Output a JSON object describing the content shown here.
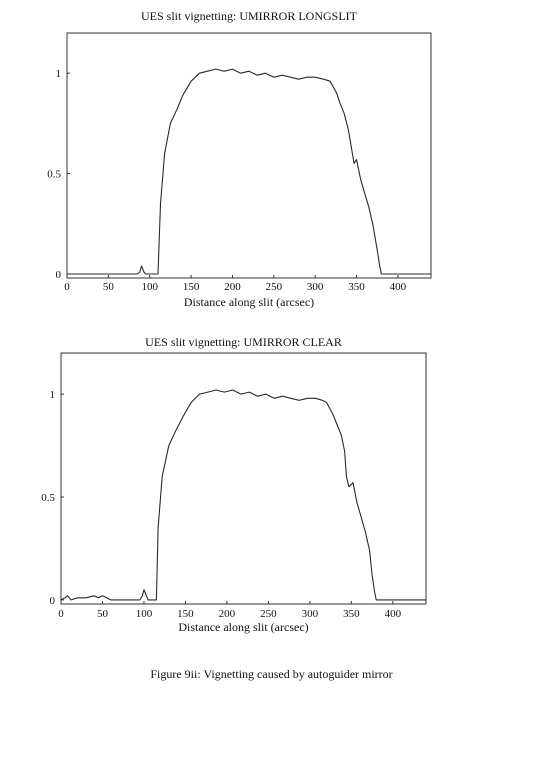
{
  "colors": {
    "line": "#2a2a2a",
    "frame": "#333333",
    "background": "#ffffff"
  },
  "caption": "Figure 9ii: Vignetting caused by autoguider mirror",
  "chart_data": [
    {
      "type": "line",
      "title": "UES slit vignetting: UMIRROR LONGSLIT",
      "xlabel": "Distance along slit (arcsec)",
      "ylabel": "",
      "xlim": [
        0,
        440
      ],
      "ylim": [
        -0.02,
        1.2
      ],
      "x_ticks": [
        "0",
        "50",
        "100",
        "150",
        "200",
        "250",
        "300",
        "350",
        "400"
      ],
      "y_ticks": [
        "0",
        "0.5",
        "1"
      ],
      "grid": false,
      "series": [
        {
          "x": [
            0,
            85,
            88,
            90,
            93,
            95,
            110,
            113,
            118,
            125,
            133,
            140,
            150,
            160,
            170,
            180,
            190,
            200,
            210,
            220,
            230,
            240,
            250,
            260,
            270,
            280,
            290,
            300,
            310,
            318,
            322,
            326,
            330,
            335,
            340,
            345,
            347,
            350,
            355,
            360,
            365,
            370,
            375,
            378,
            380,
            382,
            440
          ],
          "y": [
            0,
            0,
            0.01,
            0.04,
            0.01,
            0,
            0,
            0.35,
            0.6,
            0.75,
            0.82,
            0.89,
            0.96,
            1.0,
            1.01,
            1.02,
            1.01,
            1.02,
            1.0,
            1.01,
            0.99,
            1.0,
            0.98,
            0.99,
            0.98,
            0.97,
            0.98,
            0.98,
            0.97,
            0.96,
            0.93,
            0.9,
            0.85,
            0.8,
            0.72,
            0.6,
            0.55,
            0.57,
            0.47,
            0.4,
            0.33,
            0.24,
            0.12,
            0.04,
            0,
            0,
            0
          ]
        }
      ]
    },
    {
      "type": "line",
      "title": "UES slit vignetting: UMIRROR CLEAR",
      "xlabel": "Distance along slit (arcsec)",
      "ylabel": "",
      "xlim": [
        0,
        440
      ],
      "ylim": [
        -0.02,
        1.2
      ],
      "x_ticks": [
        "0",
        "50",
        "100",
        "150",
        "200",
        "250",
        "300",
        "350",
        "400"
      ],
      "y_ticks": [
        "0",
        "0.5",
        "1"
      ],
      "grid": false,
      "series": [
        {
          "x": [
            0,
            5,
            8,
            10,
            12,
            20,
            30,
            40,
            45,
            50,
            60,
            80,
            95,
            98,
            100,
            103,
            105,
            115,
            117,
            122,
            130,
            138,
            147,
            157,
            167,
            177,
            187,
            197,
            207,
            217,
            227,
            237,
            247,
            257,
            267,
            277,
            287,
            297,
            307,
            315,
            320,
            324,
            328,
            333,
            338,
            342,
            344,
            347,
            352,
            357,
            362,
            367,
            372,
            375,
            378,
            380,
            440
          ],
          "y": [
            0,
            0.01,
            0.02,
            0.01,
            0,
            0.01,
            0.01,
            0.02,
            0.01,
            0.02,
            0,
            0,
            0,
            0.02,
            0.05,
            0.02,
            0,
            0,
            0.35,
            0.6,
            0.75,
            0.82,
            0.89,
            0.96,
            1.0,
            1.01,
            1.02,
            1.01,
            1.02,
            1.0,
            1.01,
            0.99,
            1.0,
            0.98,
            0.99,
            0.98,
            0.97,
            0.98,
            0.98,
            0.97,
            0.96,
            0.93,
            0.9,
            0.85,
            0.8,
            0.72,
            0.6,
            0.55,
            0.57,
            0.47,
            0.4,
            0.33,
            0.24,
            0.12,
            0.04,
            0,
            0
          ]
        }
      ]
    }
  ]
}
